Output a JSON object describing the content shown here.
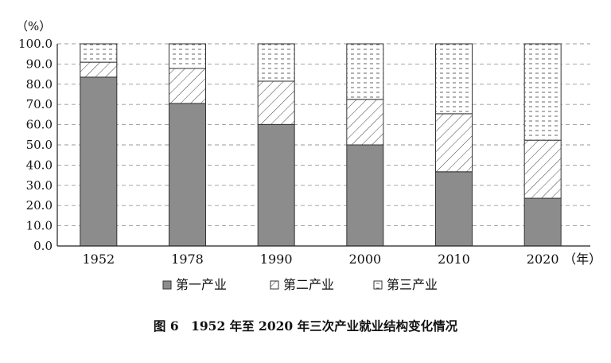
{
  "chart_data": {
    "type": "bar",
    "stacked": true,
    "categories": [
      "1952",
      "1978",
      "1990",
      "2000",
      "2010",
      "2020"
    ],
    "x_unit": "（年）",
    "y_unit": "（%）",
    "ylim": [
      0,
      100
    ],
    "yticks": [
      "0.0",
      "10.0",
      "20.0",
      "30.0",
      "40.0",
      "50.0",
      "60.0",
      "70.0",
      "80.0",
      "90.0",
      "100.0"
    ],
    "grid": "horizontal dashed",
    "legend_position": "bottom",
    "series": [
      {
        "name": "第一产业",
        "pattern": "solid-gray",
        "values": [
          83.5,
          70.5,
          60.1,
          50.0,
          36.7,
          23.6
        ]
      },
      {
        "name": "第二产业",
        "pattern": "diagonal-hatch",
        "values": [
          7.4,
          17.3,
          21.4,
          22.5,
          28.7,
          28.7
        ]
      },
      {
        "name": "第三产业",
        "pattern": "dotted",
        "values": [
          9.1,
          12.2,
          18.5,
          27.5,
          34.6,
          47.7
        ]
      }
    ],
    "caption": "图 6　1952 年至 2020 年三次产业就业结构变化情况",
    "colors": {
      "primary": "#8c8c8c",
      "stroke": "#333333",
      "grid": "#999999"
    }
  }
}
